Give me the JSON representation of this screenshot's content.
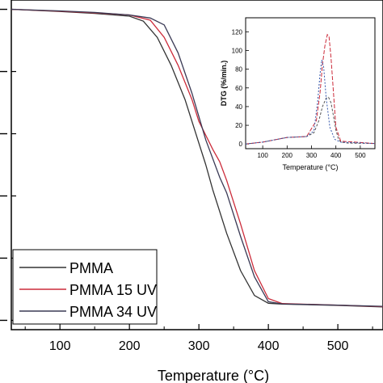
{
  "chart_data": [
    {
      "type": "line",
      "xlabel": "Temperature (°C)",
      "ylabel": "",
      "xlim": [
        30,
        565
      ],
      "ylim": [
        -3,
        103
      ],
      "x_ticks": [
        100,
        200,
        300,
        400,
        500
      ],
      "y_ticks": [
        0,
        20,
        40,
        60,
        80,
        100
      ],
      "y_tick_labels_visible": false,
      "grid": false,
      "legend": {
        "placement": "bottom-left"
      },
      "series": [
        {
          "name": "PMMA",
          "color": "#333333",
          "x": [
            30,
            100,
            150,
            200,
            220,
            240,
            260,
            280,
            300,
            310,
            320,
            340,
            360,
            380,
            400,
            420,
            500,
            565
          ],
          "y": [
            100,
            99.3,
            98.7,
            97.8,
            96.2,
            91,
            82,
            71,
            57,
            50,
            42,
            28,
            16,
            8,
            5.5,
            5.2,
            4.8,
            4.3
          ]
        },
        {
          "name": "PMMA 15 UV",
          "color": "#cc2b3a",
          "x": [
            30,
            100,
            150,
            200,
            230,
            250,
            270,
            290,
            300,
            320,
            330,
            340,
            360,
            380,
            400,
            420,
            500,
            565
          ],
          "y": [
            100,
            99.4,
            98.9,
            98.2,
            96.5,
            91,
            82,
            71,
            64,
            55,
            51,
            45,
            31,
            16,
            7,
            5.4,
            4.9,
            4.4
          ]
        },
        {
          "name": "PMMA 34 UV",
          "color": "#3a3a55",
          "x": [
            30,
            100,
            150,
            200,
            230,
            250,
            270,
            290,
            310,
            330,
            340,
            360,
            380,
            400,
            420,
            500,
            565
          ],
          "y": [
            100,
            99.5,
            99,
            98.2,
            97.2,
            95,
            86,
            73,
            58,
            46,
            41,
            27,
            14,
            6,
            5.3,
            4.9,
            4.5
          ]
        }
      ]
    },
    {
      "type": "line",
      "title": "",
      "xlabel": "Temperature (°C)",
      "ylabel": "DTG (%/min.)",
      "xlim": [
        30,
        560
      ],
      "ylim": [
        -5,
        135
      ],
      "x_ticks": [
        100,
        200,
        300,
        400,
        500
      ],
      "y_ticks": [
        0,
        20,
        40,
        60,
        80,
        100,
        120
      ],
      "grid": false,
      "series": [
        {
          "color": "#555555",
          "x": [
            30,
            100,
            200,
            280,
            310,
            330,
            345,
            360,
            370,
            380,
            390,
            400,
            410,
            420,
            450,
            560
          ],
          "y": [
            0,
            2,
            7,
            8,
            12,
            25,
            40,
            49,
            50,
            44,
            30,
            15,
            6,
            2,
            1,
            0.5
          ]
        },
        {
          "color": "#cc2b3a",
          "x": [
            30,
            100,
            200,
            280,
            320,
            335,
            345,
            355,
            365,
            372,
            380,
            390,
            400,
            420,
            560
          ],
          "y": [
            0,
            2,
            7,
            8,
            25,
            55,
            85,
            105,
            117,
            115,
            92,
            55,
            18,
            3,
            0.5
          ]
        },
        {
          "color": "#3355aa",
          "x": [
            30,
            100,
            200,
            280,
            310,
            325,
            335,
            342,
            350,
            360,
            375,
            395,
            420,
            560
          ],
          "y": [
            0,
            2,
            7,
            8,
            14,
            45,
            75,
            90,
            82,
            50,
            18,
            5,
            2,
            0.5
          ]
        }
      ]
    }
  ]
}
